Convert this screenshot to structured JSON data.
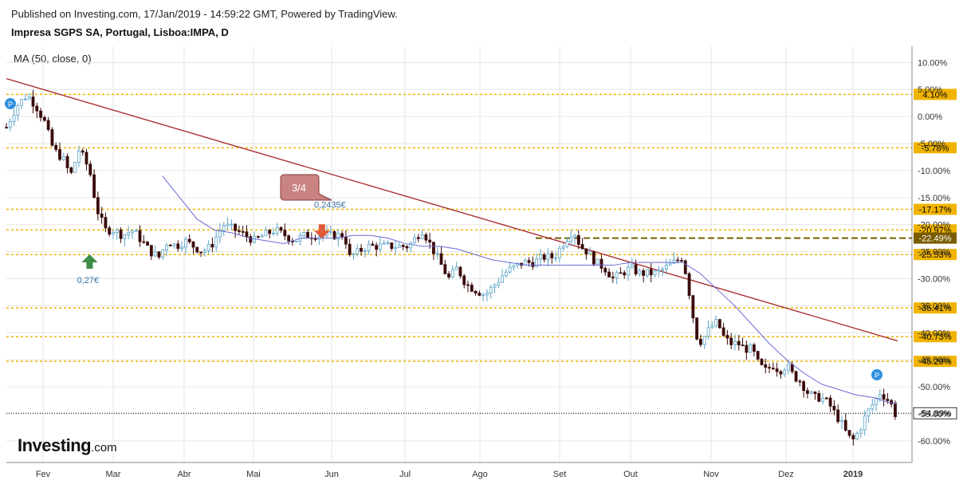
{
  "header": {
    "published": "Published on Investing.com, 17/Jan/2019 - 14:59:22 GMT, Powered by TradingView.",
    "instrument": "Impresa SGPS SA, Portugal, Lisboa:IMPA, D"
  },
  "indicator_label": "MA (50, close, 0)",
  "logo": {
    "name": "Investing",
    "suffix": ".com"
  },
  "colors": {
    "up": "#5aa3c8",
    "down": "#3a0a0a",
    "ma": "#6b6bd8",
    "trend": "#a52525",
    "level": "#f0b400",
    "level_dark": "#7a5c00",
    "grid": "#e6e6e6"
  },
  "chart_data": {
    "type": "candlestick",
    "title": "Impresa SGPS SA, Portugal, Lisboa:IMPA, D",
    "ylim": [
      -64,
      13
    ],
    "y_ticks": [
      "10.00%",
      "5.00%",
      "0.00%",
      "-5.00%",
      "-10.00%",
      "-15.00%",
      "-20.00%",
      "-25.00%",
      "-30.00%",
      "-35.00%",
      "-40.00%",
      "-45.00%",
      "-50.00%",
      "-55.00%",
      "-60.00%"
    ],
    "x_months": [
      "Fev",
      "Mar",
      "Abr",
      "Mai",
      "Jun",
      "Jul",
      "Ago",
      "Set",
      "Out",
      "Nov",
      "Dez",
      "2019"
    ],
    "series_ma_label": "MA (50, close, 0)",
    "close_path": [
      [
        0,
        -2
      ],
      [
        6,
        2
      ],
      [
        12,
        4
      ],
      [
        17,
        2
      ],
      [
        22,
        -1
      ],
      [
        27,
        -6
      ],
      [
        33,
        -8
      ],
      [
        37,
        -11
      ],
      [
        42,
        -6
      ],
      [
        48,
        -10
      ],
      [
        52,
        -17
      ],
      [
        57,
        -21
      ],
      [
        62,
        -21
      ],
      [
        67,
        -22
      ],
      [
        73,
        -21
      ],
      [
        78,
        -23
      ],
      [
        83,
        -25
      ],
      [
        88,
        -26
      ],
      [
        93,
        -23
      ],
      [
        98,
        -24
      ],
      [
        103,
        -23
      ],
      [
        108,
        -24
      ],
      [
        113,
        -25
      ],
      [
        118,
        -24
      ],
      [
        125,
        -20
      ],
      [
        132,
        -21
      ],
      [
        138,
        -22
      ],
      [
        143,
        -23
      ],
      [
        148,
        -22
      ],
      [
        155,
        -21
      ],
      [
        161,
        -22
      ],
      [
        166,
        -23
      ],
      [
        172,
        -22
      ],
      [
        178,
        -22
      ],
      [
        184,
        -22
      ],
      [
        189,
        -22
      ],
      [
        195,
        -22
      ],
      [
        198,
        -26
      ],
      [
        203,
        -25
      ],
      [
        208,
        -24
      ],
      [
        214,
        -24
      ],
      [
        220,
        -24
      ],
      [
        226,
        -24
      ],
      [
        232,
        -24
      ],
      [
        237,
        -22
      ],
      [
        240,
        -21
      ],
      [
        245,
        -24
      ],
      [
        250,
        -27
      ],
      [
        255,
        -30
      ],
      [
        260,
        -28
      ],
      [
        265,
        -31
      ],
      [
        270,
        -32
      ],
      [
        276,
        -33
      ],
      [
        282,
        -31
      ],
      [
        287,
        -29
      ],
      [
        292,
        -28
      ],
      [
        298,
        -27
      ],
      [
        304,
        -27
      ],
      [
        310,
        -26
      ],
      [
        316,
        -26
      ],
      [
        322,
        -23
      ],
      [
        327,
        -21
      ],
      [
        331,
        -24
      ],
      [
        335,
        -25
      ],
      [
        340,
        -27
      ],
      [
        345,
        -28
      ],
      [
        350,
        -30
      ],
      [
        355,
        -29
      ],
      [
        360,
        -28
      ],
      [
        365,
        -29
      ],
      [
        370,
        -29
      ],
      [
        375,
        -29
      ],
      [
        380,
        -28
      ],
      [
        385,
        -27
      ],
      [
        390,
        -26
      ],
      [
        393,
        -31
      ],
      [
        396,
        -37
      ],
      [
        399,
        -42
      ],
      [
        402,
        -41
      ],
      [
        406,
        -39
      ],
      [
        410,
        -38
      ],
      [
        414,
        -41
      ],
      [
        418,
        -42
      ],
      [
        422,
        -42
      ],
      [
        426,
        -43
      ],
      [
        430,
        -43
      ],
      [
        434,
        -46
      ],
      [
        438,
        -47
      ],
      [
        442,
        -46
      ],
      [
        446,
        -47
      ],
      [
        450,
        -46
      ],
      [
        454,
        -48
      ],
      [
        458,
        -49
      ],
      [
        462,
        -51
      ],
      [
        466,
        -52
      ],
      [
        470,
        -52
      ],
      [
        474,
        -53
      ],
      [
        478,
        -55
      ],
      [
        482,
        -57
      ],
      [
        485,
        -59
      ],
      [
        488,
        -60
      ],
      [
        492,
        -58
      ],
      [
        496,
        -55
      ],
      [
        500,
        -53
      ],
      [
        504,
        -51
      ],
      [
        507,
        -52
      ],
      [
        510,
        -53
      ],
      [
        512,
        -55
      ]
    ],
    "ma_path": [
      [
        90,
        -11
      ],
      [
        100,
        -15
      ],
      [
        110,
        -19
      ],
      [
        120,
        -21
      ],
      [
        130,
        -21.5
      ],
      [
        140,
        -22.5
      ],
      [
        150,
        -23
      ],
      [
        160,
        -23.5
      ],
      [
        170,
        -22.5
      ],
      [
        180,
        -22.5
      ],
      [
        190,
        -22.5
      ],
      [
        200,
        -22
      ],
      [
        210,
        -22
      ],
      [
        220,
        -22.5
      ],
      [
        230,
        -23.5
      ],
      [
        240,
        -24
      ],
      [
        250,
        -24
      ],
      [
        260,
        -24.5
      ],
      [
        270,
        -25.5
      ],
      [
        280,
        -26.5
      ],
      [
        290,
        -27
      ],
      [
        300,
        -27.5
      ],
      [
        310,
        -27.5
      ],
      [
        320,
        -27.5
      ],
      [
        330,
        -27.5
      ],
      [
        340,
        -27.5
      ],
      [
        350,
        -27.5
      ],
      [
        360,
        -27
      ],
      [
        370,
        -27
      ],
      [
        380,
        -27
      ],
      [
        390,
        -27
      ],
      [
        400,
        -29
      ],
      [
        410,
        -32
      ],
      [
        420,
        -35
      ],
      [
        430,
        -38.5
      ],
      [
        440,
        -42
      ],
      [
        450,
        -45
      ],
      [
        460,
        -47.5
      ],
      [
        470,
        -49.5
      ],
      [
        480,
        -50.5
      ],
      [
        490,
        -51.5
      ],
      [
        500,
        -52
      ],
      [
        510,
        -53
      ],
      [
        514,
        -53
      ]
    ],
    "trendline": {
      "from": [
        0,
        7
      ],
      "to": [
        514,
        -41.5
      ]
    },
    "horizontal_levels": [
      {
        "value": 4.1,
        "label": "4.10%"
      },
      {
        "value": -5.78,
        "label": "-5.78%"
      },
      {
        "value": -17.17,
        "label": "-17.17%"
      },
      {
        "value": -20.97,
        "label": "-20.97%"
      },
      {
        "value": -22.49,
        "label": "-22.49%",
        "style": "dark"
      },
      {
        "value": -25.53,
        "label": "-25.53%"
      },
      {
        "value": -35.41,
        "label": "-35.41%"
      },
      {
        "value": -40.73,
        "label": "-40.73%"
      },
      {
        "value": -45.29,
        "label": "-45.29%"
      }
    ],
    "current_value": {
      "value": -54.89,
      "label": "-54.89%"
    },
    "annotations": [
      {
        "type": "buy",
        "x": 48,
        "y": -25.5,
        "text": "0,27€"
      },
      {
        "type": "sell",
        "x": 182,
        "y": -22,
        "text": "0,2435€"
      },
      {
        "type": "callout",
        "text": "3/4"
      },
      {
        "type": "marker",
        "text": "P"
      },
      {
        "type": "marker",
        "text": "P"
      }
    ]
  }
}
